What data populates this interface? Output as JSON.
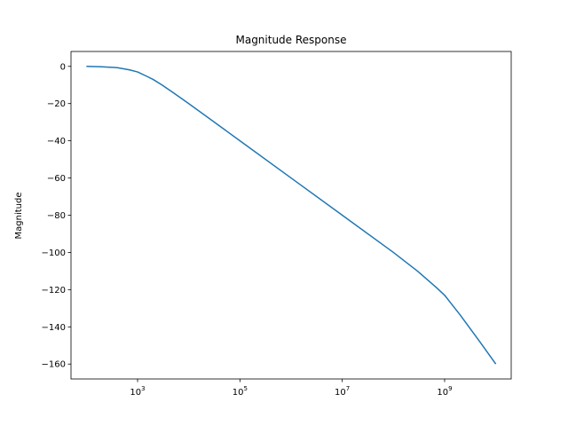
{
  "chart_data": {
    "type": "line",
    "title": "Magnitude Response",
    "xlabel": "",
    "ylabel": "Magnitude",
    "x_scale": "log",
    "xlim": [
      50,
      20000000000
    ],
    "ylim": [
      -168,
      8
    ],
    "grid": false,
    "x_ticks": [
      {
        "value": 1000,
        "base": "10",
        "exp": "3"
      },
      {
        "value": 100000,
        "base": "10",
        "exp": "5"
      },
      {
        "value": 10000000,
        "base": "10",
        "exp": "7"
      },
      {
        "value": 1000000000,
        "base": "10",
        "exp": "9"
      }
    ],
    "y_ticks": [
      {
        "value": 0,
        "label": "0"
      },
      {
        "value": -20,
        "label": "−20"
      },
      {
        "value": -40,
        "label": "−40"
      },
      {
        "value": -60,
        "label": "−60"
      },
      {
        "value": -80,
        "label": "−80"
      },
      {
        "value": -100,
        "label": "−100"
      },
      {
        "value": -120,
        "label": "−120"
      },
      {
        "value": -140,
        "label": "−140"
      },
      {
        "value": -160,
        "label": "−160"
      }
    ],
    "series": [
      {
        "color": "#1f77b4",
        "x": [
          100,
          200,
          400,
          700,
          1000,
          1500,
          2000,
          3000,
          5000,
          10000,
          100000,
          1000000,
          10000000,
          100000000,
          300000000,
          700000000,
          1000000000,
          2000000000,
          5000000000,
          10000000000
        ],
        "y": [
          0,
          -0.2,
          -0.7,
          -1.9,
          -3.0,
          -5.3,
          -7.0,
          -10.0,
          -14.2,
          -20.0,
          -40.0,
          -60.0,
          -80.0,
          -100.0,
          -110.2,
          -119.0,
          -123.0,
          -133.5,
          -148.4,
          -160.0
        ]
      }
    ]
  }
}
